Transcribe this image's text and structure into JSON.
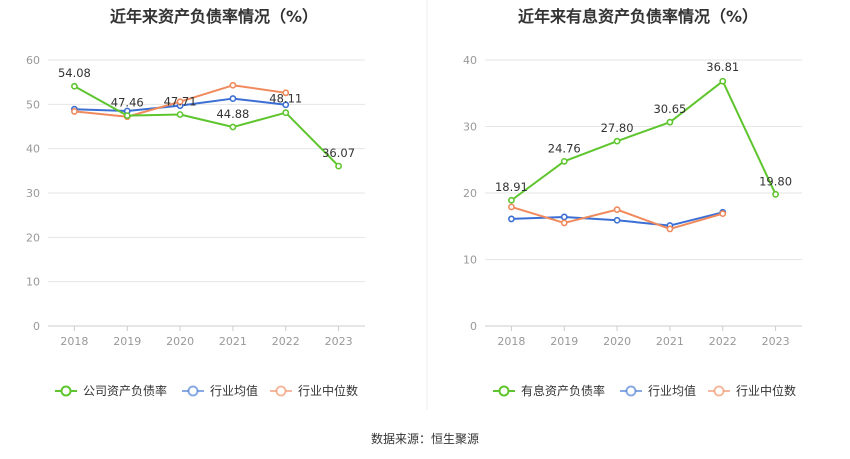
{
  "source": "数据来源：恒生聚源",
  "chart_data": [
    {
      "type": "line",
      "title": "近年来资产负债率情况（%）",
      "categories": [
        "2018",
        "2019",
        "2020",
        "2021",
        "2022",
        "2023"
      ],
      "ylim": [
        0,
        60
      ],
      "yticks": [
        0,
        10,
        20,
        30,
        40,
        50,
        60
      ],
      "grid": true,
      "legend_position": "bottom",
      "series": [
        {
          "name": "公司资产负债率",
          "color": "#5ec52e",
          "values": [
            54.08,
            47.46,
            47.71,
            44.88,
            48.11,
            36.07
          ],
          "labels": [
            "54.08",
            "47.46",
            "47.71",
            "44.88",
            "48.11",
            "36.07"
          ]
        },
        {
          "name": "行业均值",
          "color": "#3b6fd4",
          "values": [
            48.9,
            48.5,
            49.7,
            51.3,
            49.9,
            null
          ]
        },
        {
          "name": "行业中位数",
          "color": "#f08a5d",
          "values": [
            48.4,
            47.2,
            50.6,
            54.3,
            52.6,
            null
          ]
        }
      ]
    },
    {
      "type": "line",
      "title": "近年来有息资产负债率情况（%）",
      "categories": [
        "2018",
        "2019",
        "2020",
        "2021",
        "2022",
        "2023"
      ],
      "ylim": [
        0,
        40
      ],
      "yticks": [
        0,
        10,
        20,
        30,
        40
      ],
      "grid": true,
      "legend_position": "bottom",
      "series": [
        {
          "name": "有息资产负债率",
          "color": "#5ec52e",
          "values": [
            18.91,
            24.76,
            27.8,
            30.65,
            36.81,
            19.8
          ],
          "labels": [
            "18.91",
            "24.76",
            "27.80",
            "30.65",
            "36.81",
            "19.80"
          ]
        },
        {
          "name": "行业均值",
          "color": "#3b6fd4",
          "values": [
            16.1,
            16.4,
            15.9,
            15.1,
            17.1,
            null
          ]
        },
        {
          "name": "行业中位数",
          "color": "#f08a5d",
          "values": [
            17.9,
            15.5,
            17.5,
            14.6,
            16.9,
            null
          ]
        }
      ]
    }
  ]
}
